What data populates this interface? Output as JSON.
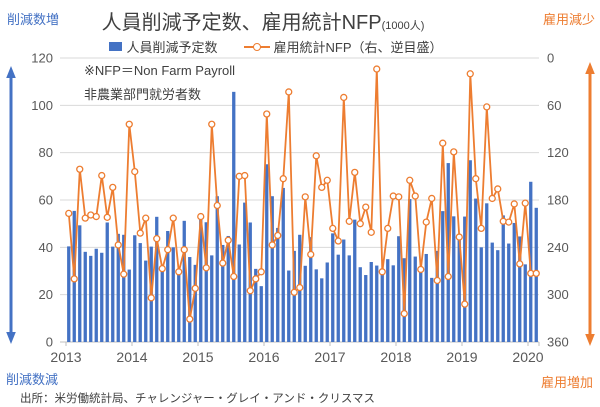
{
  "title": {
    "text": "人員削減予定数、雇用統計NFP",
    "unit": "(1000人)"
  },
  "corner_labels": {
    "top_left": "削減数増",
    "top_right": "雇用減少",
    "bottom_left": "削減数減",
    "bottom_right": "雇用増加"
  },
  "legend": {
    "items": [
      {
        "label": "人員削減予定数",
        "marker": "bar-swatch",
        "color": "#4472C4"
      },
      {
        "label": "雇用統計NFP（右、逆目盛）",
        "marker": "line-circle-swatch",
        "color": "#ED7D31"
      }
    ]
  },
  "annotations": {
    "line1": "※NFP＝Non Farm Payroll",
    "line2": "非農業部門就労者数"
  },
  "source": "出所：米労働統計局、チャレンジャー・グレイ・アンド・クリスマス",
  "colors": {
    "bar": "#4472C4",
    "line": "#ED7D31",
    "marker_fill": "#FFFFFF",
    "grid": "#D9D9D9",
    "axis": "#BFBFBF",
    "tick_text": "#595959",
    "title_text": "#404040"
  },
  "chart_data": {
    "type": "combo",
    "subtype": [
      "bar",
      "line"
    ],
    "unit": "1000人",
    "months": [
      "2013-01",
      "2013-02",
      "2013-03",
      "2013-04",
      "2013-05",
      "2013-06",
      "2013-07",
      "2013-08",
      "2013-09",
      "2013-10",
      "2013-11",
      "2013-12",
      "2014-01",
      "2014-02",
      "2014-03",
      "2014-04",
      "2014-05",
      "2014-06",
      "2014-07",
      "2014-08",
      "2014-09",
      "2014-10",
      "2014-11",
      "2014-12",
      "2015-01",
      "2015-02",
      "2015-03",
      "2015-04",
      "2015-05",
      "2015-06",
      "2015-07",
      "2015-08",
      "2015-09",
      "2015-10",
      "2015-11",
      "2015-12",
      "2016-01",
      "2016-02",
      "2016-03",
      "2016-04",
      "2016-05",
      "2016-06",
      "2016-07",
      "2016-08",
      "2016-09",
      "2016-10",
      "2016-11",
      "2016-12",
      "2017-01",
      "2017-02",
      "2017-03",
      "2017-04",
      "2017-05",
      "2017-06",
      "2017-07",
      "2017-08",
      "2017-09",
      "2017-10",
      "2017-11",
      "2017-12",
      "2018-01",
      "2018-02",
      "2018-03",
      "2018-04",
      "2018-05",
      "2018-06",
      "2018-07",
      "2018-08",
      "2018-09",
      "2018-10",
      "2018-11",
      "2018-12",
      "2019-01",
      "2019-02",
      "2019-03",
      "2019-04",
      "2019-05",
      "2019-06",
      "2019-07",
      "2019-08",
      "2019-09",
      "2019-10",
      "2019-11",
      "2019-12",
      "2020-01",
      "2020-02"
    ],
    "series": [
      {
        "name": "人員削減予定数",
        "chart": "bar",
        "axis": "left",
        "values": [
          40.4,
          55.4,
          49.3,
          38.1,
          36.4,
          39.4,
          37.7,
          50.5,
          40.3,
          45.7,
          45.3,
          30.6,
          45.1,
          41.8,
          34.4,
          40.3,
          52.9,
          31.4,
          46.9,
          40.0,
          30.5,
          51.2,
          35.9,
          32.6,
          53.0,
          50.6,
          36.6,
          61.6,
          41.0,
          44.8,
          105.7,
          41.2,
          58.9,
          50.5,
          30.9,
          23.6,
          75.1,
          61.6,
          48.2,
          65.1,
          30.2,
          38.5,
          45.3,
          32.2,
          44.3,
          30.7,
          26.9,
          33.6,
          45.9,
          36.9,
          43.3,
          36.6,
          51.7,
          31.6,
          28.3,
          33.8,
          32.3,
          29.8,
          35.0,
          32.4,
          44.7,
          35.4,
          60.4,
          36.1,
          31.5,
          37.2,
          27.1,
          38.5,
          55.3,
          75.6,
          53.1,
          43.9,
          53.0,
          76.8,
          60.6,
          40.0,
          58.6,
          42.0,
          38.8,
          53.5,
          41.6,
          50.3,
          44.6,
          32.8,
          67.7,
          56.7
        ]
      },
      {
        "name": "雇用統計NFP（右、逆目盛）",
        "chart": "line",
        "axis": "right",
        "inverted": true,
        "values": [
          197,
          280,
          141,
          203,
          199,
          201,
          149,
          202,
          164,
          237,
          274,
          84,
          144,
          222,
          203,
          304,
          229,
          267,
          243,
          203,
          271,
          243,
          331,
          292,
          201,
          266,
          84,
          187,
          260,
          231,
          277,
          150,
          149,
          295,
          280,
          271,
          71,
          237,
          225,
          153,
          43,
          297,
          291,
          176,
          249,
          124,
          164,
          155,
          216,
          232,
          50,
          207,
          145,
          210,
          189,
          221,
          14,
          271,
          216,
          175,
          176,
          324,
          155,
          175,
          268,
          208,
          178,
          282,
          108,
          277,
          119,
          227,
          312,
          20,
          153,
          216,
          62,
          178,
          166,
          207,
          208,
          185,
          261,
          184,
          273,
          273
        ]
      }
    ],
    "left_axis": {
      "ticks": [
        120,
        100,
        80,
        60,
        40,
        20,
        0
      ],
      "range": [
        0,
        120
      ],
      "direction_top": "削減数増",
      "direction_bottom": "削減数減"
    },
    "right_axis": {
      "ticks": [
        0,
        60,
        120,
        180,
        240,
        300,
        360
      ],
      "range": [
        0,
        360
      ],
      "inverted": true,
      "direction_top": "雇用減少",
      "direction_bottom": "雇用増加"
    },
    "x_axis": {
      "year_labels": [
        "2013",
        "2014",
        "2015",
        "2016",
        "2017",
        "2018",
        "2019",
        "2020"
      ]
    },
    "grid": true,
    "legend_position": "top"
  }
}
